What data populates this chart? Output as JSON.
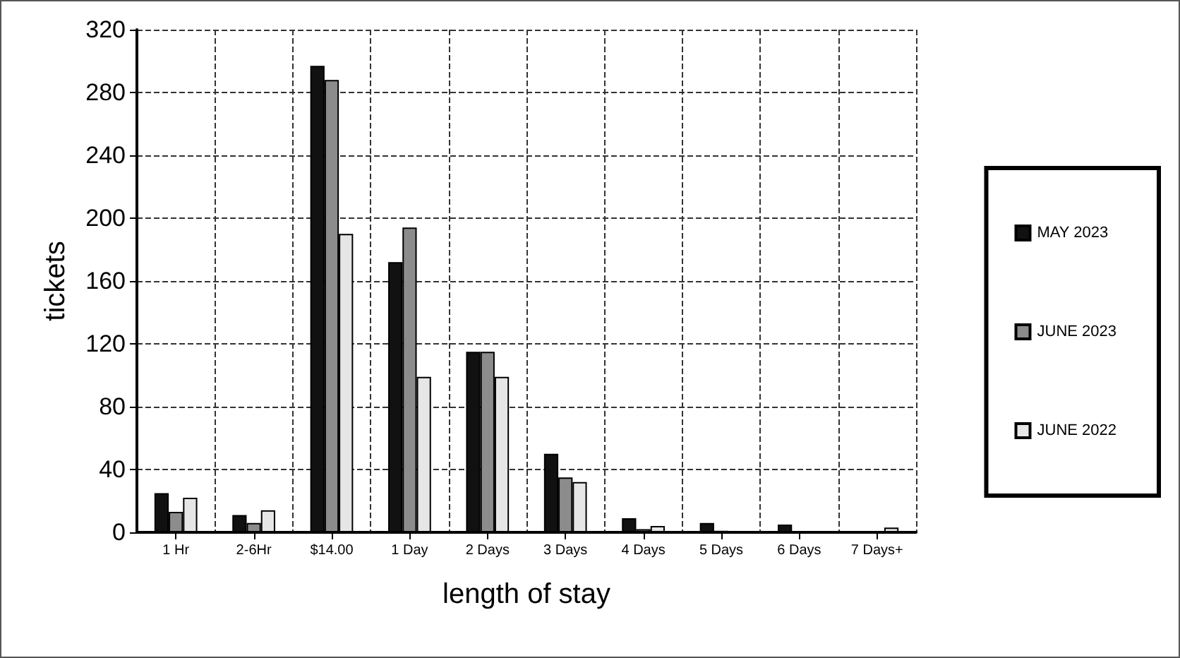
{
  "chart_data": {
    "type": "bar",
    "xlabel": "length of stay",
    "ylabel": "tickets",
    "categories": [
      "1 Hr",
      "2-6Hr",
      "$14.00",
      "1 Day",
      "2 Days",
      "3 Days",
      "4 Days",
      "5 Days",
      "6 Days",
      "7 Days+"
    ],
    "series": [
      {
        "name": "MAY 2023",
        "color": "#111111",
        "values": [
          25,
          11,
          297,
          172,
          115,
          50,
          9,
          6,
          5,
          0
        ]
      },
      {
        "name": "JUNE 2023",
        "color": "#8c8c8c",
        "values": [
          13,
          6,
          288,
          194,
          115,
          35,
          2,
          1,
          0,
          0
        ]
      },
      {
        "name": "JUNE 2022",
        "color": "#e6e6e6",
        "values": [
          22,
          14,
          190,
          99,
          99,
          32,
          4,
          0,
          0,
          3
        ]
      }
    ],
    "ylim": [
      0,
      320
    ],
    "yticks": [
      0,
      40,
      80,
      120,
      160,
      200,
      240,
      280,
      320
    ],
    "grid": true,
    "legend": "right"
  }
}
